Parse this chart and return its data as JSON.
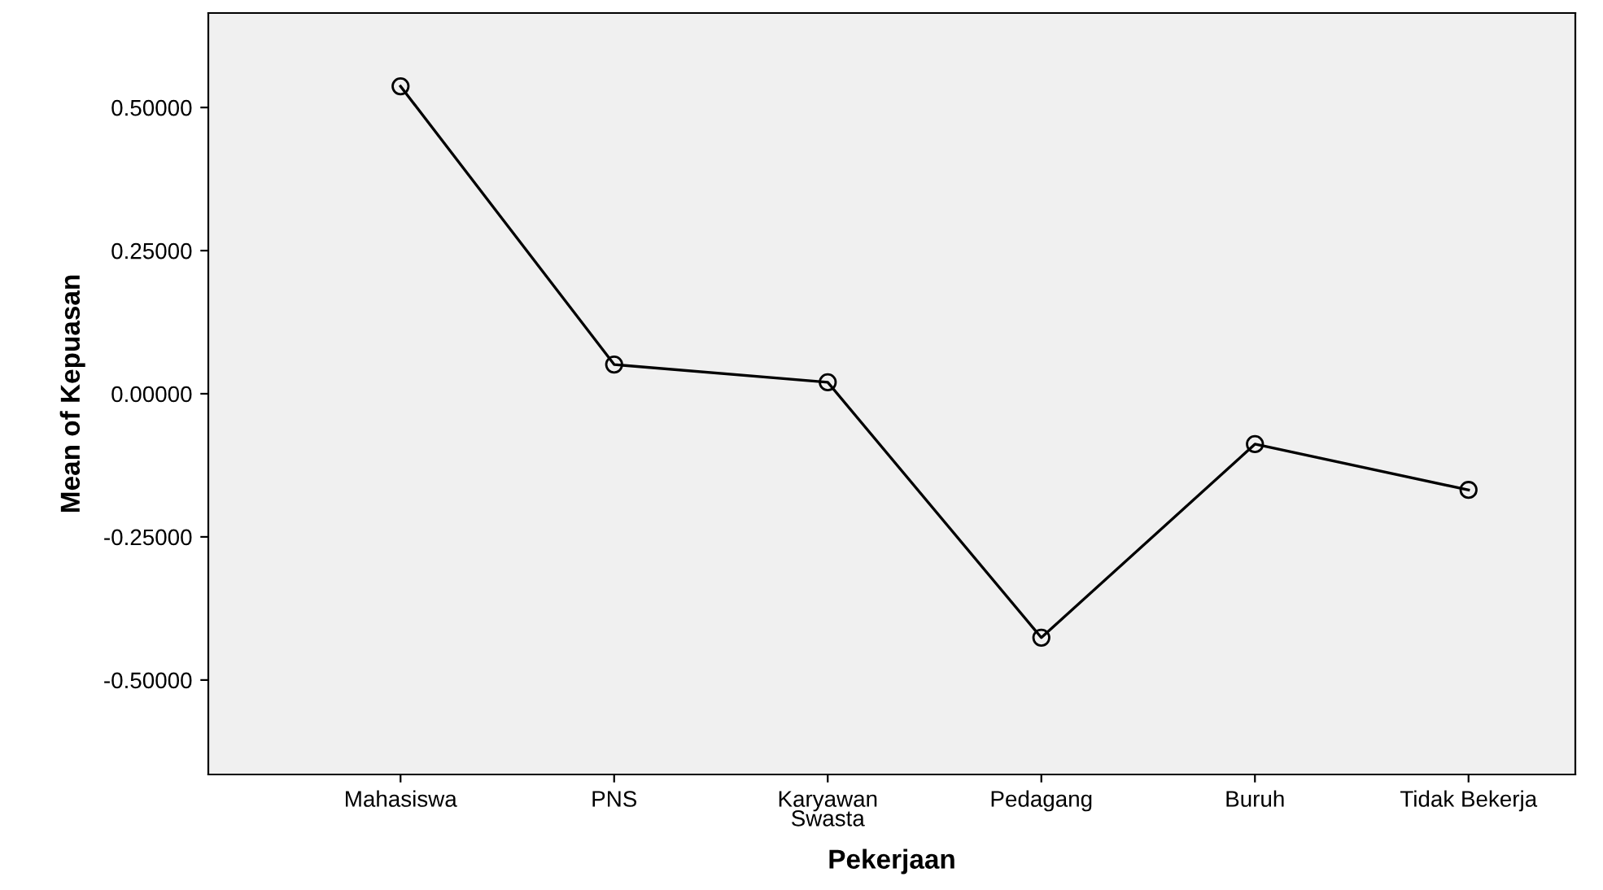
{
  "chart_data": {
    "type": "line",
    "xlabel": "Pekerjaan",
    "ylabel": "Mean of Kepuasan",
    "categories": [
      "Mahasiswa",
      "PNS",
      "Karyawan\nSwasta",
      "Pedagang",
      "Buruh",
      "Tidak Bekerja"
    ],
    "series": [
      {
        "color": "#000000",
        "values": [
          0.537,
          0.051,
          0.02,
          -0.426,
          -0.088,
          -0.168
        ]
      }
    ],
    "ylim": [
      -0.665,
      0.665
    ],
    "yticks": [
      {
        "value": -0.5,
        "label": "-0.50000"
      },
      {
        "value": -0.25,
        "label": "-0.25000"
      },
      {
        "value": 0,
        "label": "0.00000"
      },
      {
        "value": 0.25,
        "label": "0.25000"
      },
      {
        "value": 0.5,
        "label": "0.50000"
      }
    ],
    "marker": "circle",
    "line_style": "solid",
    "grid": false,
    "legend": false
  }
}
